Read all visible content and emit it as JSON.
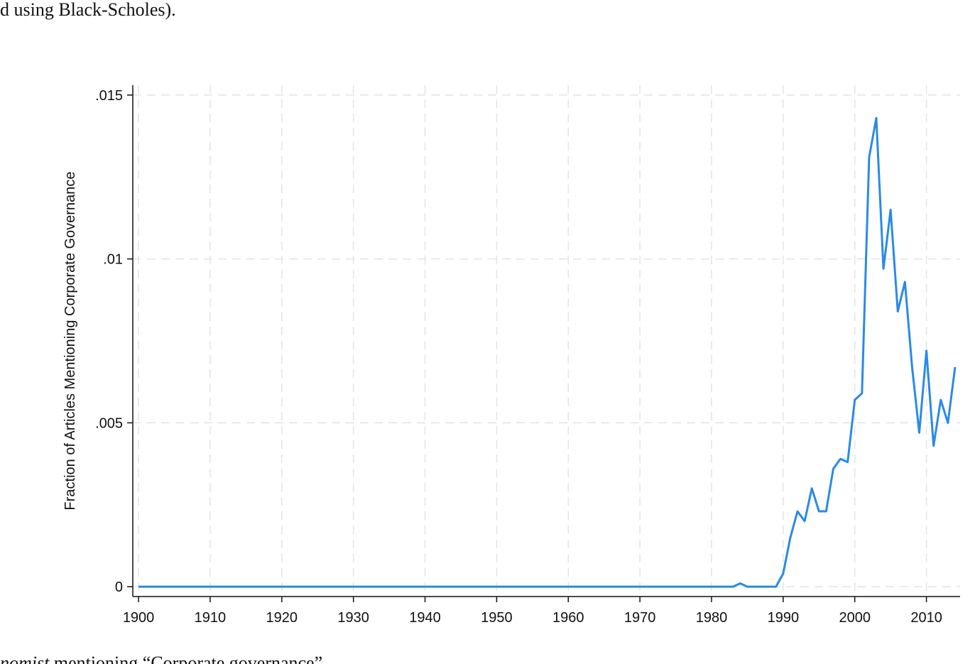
{
  "page_text": {
    "top": "d using Black-Scholes).",
    "bottom_italic": "nomist",
    "bottom": " mentioning “Corporate governance”"
  },
  "chart_data": {
    "type": "line",
    "y_label": "Fraction of Articles Mentioning Corporate Governance",
    "x": [
      1900,
      1901,
      1902,
      1903,
      1904,
      1905,
      1906,
      1907,
      1908,
      1909,
      1910,
      1911,
      1912,
      1913,
      1914,
      1915,
      1916,
      1917,
      1918,
      1919,
      1920,
      1921,
      1922,
      1923,
      1924,
      1925,
      1926,
      1927,
      1928,
      1929,
      1930,
      1931,
      1932,
      1933,
      1934,
      1935,
      1936,
      1937,
      1938,
      1939,
      1940,
      1941,
      1942,
      1943,
      1944,
      1945,
      1946,
      1947,
      1948,
      1949,
      1950,
      1951,
      1952,
      1953,
      1954,
      1955,
      1956,
      1957,
      1958,
      1959,
      1960,
      1961,
      1962,
      1963,
      1964,
      1965,
      1966,
      1967,
      1968,
      1969,
      1970,
      1971,
      1972,
      1973,
      1974,
      1975,
      1976,
      1977,
      1978,
      1979,
      1980,
      1981,
      1982,
      1983,
      1984,
      1985,
      1986,
      1987,
      1988,
      1989,
      1990,
      1991,
      1992,
      1993,
      1994,
      1995,
      1996,
      1997,
      1998,
      1999,
      2000,
      2001,
      2002,
      2003,
      2004,
      2005,
      2006,
      2007,
      2008,
      2009,
      2010,
      2011,
      2012,
      2013,
      2014
    ],
    "series": [
      {
        "color": "#2a8ae8",
        "values": [
          0,
          0,
          0,
          0,
          0,
          0,
          0,
          0,
          0,
          0,
          0,
          0,
          0,
          0,
          0,
          0,
          0,
          0,
          0,
          0,
          0,
          0,
          0,
          0,
          0,
          0,
          0,
          0,
          0,
          0,
          0,
          0,
          0,
          0,
          0,
          0,
          0,
          0,
          0,
          0,
          0,
          0,
          0,
          0,
          0,
          0,
          0,
          0,
          0,
          0,
          0,
          0,
          0,
          0,
          0,
          0,
          0,
          0,
          0,
          0,
          0,
          0,
          0,
          0,
          0,
          0,
          0,
          0,
          0,
          0,
          0,
          0,
          0,
          0,
          0,
          0,
          0,
          0,
          0,
          0,
          0,
          0,
          0,
          0,
          0.0001,
          0,
          0,
          0,
          0,
          0,
          0.0004,
          0.0015,
          0.0023,
          0.002,
          0.003,
          0.0023,
          0.0023,
          0.0036,
          0.0039,
          0.0038,
          0.0057,
          0.0059,
          0.0131,
          0.0143,
          0.0097,
          0.0115,
          0.0084,
          0.0093,
          0.0067,
          0.0047,
          0.0072,
          0.0043,
          0.0057,
          0.005,
          0.0067
        ]
      }
    ],
    "xlim": [
      1899.2,
      2014.7
    ],
    "ylim": [
      -0.0003,
      0.0153
    ],
    "xticks": [
      1900,
      1910,
      1920,
      1930,
      1940,
      1950,
      1960,
      1970,
      1980,
      1990,
      2000,
      2010
    ],
    "yticks": [
      0,
      {
        "value": 0.005,
        "label": ".005"
      },
      {
        "value": 0.01,
        "label": ".01"
      },
      {
        "value": 0.015,
        "label": ".015"
      }
    ],
    "grid": true
  }
}
